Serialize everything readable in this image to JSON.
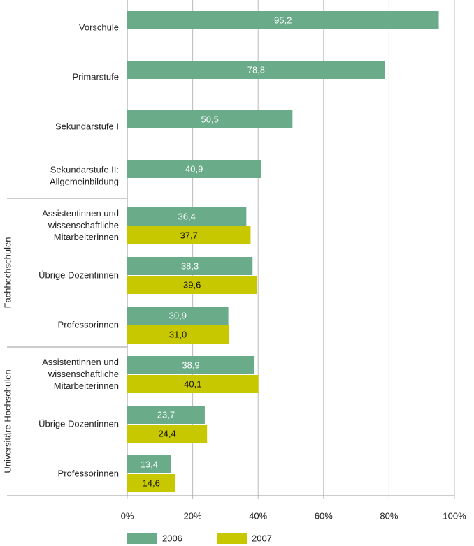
{
  "chart_data": {
    "type": "hbar",
    "categories": [
      "Vorschule",
      "Primarstufe",
      "Sekundarstufe I",
      "Sekundarstufe II:\nAllgemeinbildung",
      "Assistentinnen und\nwissenschaftliche\nMitarbeiterinnen",
      "Übrige Dozentinnen",
      "Professorinnen",
      "Assistentinnen und\nwissenschaftliche\nMitarbeiterinnen",
      "Übrige Dozentinnen",
      "Professorinnen"
    ],
    "groups": [
      {
        "label": "Fachhochschulen",
        "start": 4,
        "count": 3
      },
      {
        "label": "Universitäre Hochschulen",
        "start": 7,
        "count": 3
      }
    ],
    "series": [
      {
        "name": "2006",
        "color": "#6aab8a",
        "values": [
          95.2,
          78.8,
          50.5,
          40.9,
          36.4,
          38.3,
          30.9,
          38.9,
          23.7,
          13.4
        ],
        "value_labels": [
          "95,2",
          "78,8",
          "50,5",
          "40,9",
          "36,4",
          "38,3",
          "30,9",
          "38,9",
          "23,7",
          "13,4"
        ]
      },
      {
        "name": "2007",
        "color": "#c8c800",
        "values": [
          null,
          null,
          null,
          null,
          37.7,
          39.6,
          31.0,
          40.1,
          24.4,
          14.6
        ],
        "value_labels": [
          null,
          null,
          null,
          null,
          "37,7",
          "39,6",
          "31,0",
          "40,1",
          "24,4",
          "14,6"
        ]
      }
    ],
    "xlim": [
      0,
      100
    ],
    "xticks": [
      {
        "value": 0,
        "label": "0%"
      },
      {
        "value": 20,
        "label": "20%"
      },
      {
        "value": 40,
        "label": "40%"
      },
      {
        "value": 60,
        "label": "60%"
      },
      {
        "value": 80,
        "label": "80%"
      },
      {
        "value": 100,
        "label": "100%"
      }
    ]
  }
}
